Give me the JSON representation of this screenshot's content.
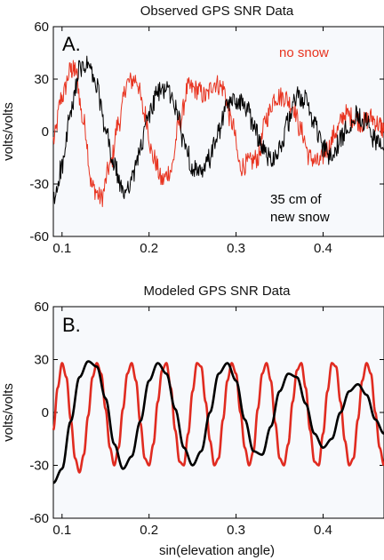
{
  "chart_data": [
    {
      "type": "line",
      "panel_label": "A.",
      "title": "Observed GPS SNR Data",
      "ylabel": "volts/volts",
      "xlabel": "",
      "xlim": [
        0.09,
        0.47
      ],
      "ylim": [
        -60,
        60
      ],
      "x_ticks": [
        "0.1",
        "0.2",
        "0.3",
        "0.4"
      ],
      "y_ticks": [
        "60",
        "30",
        "0",
        "-30",
        "-60"
      ],
      "annotations": [
        {
          "text": "no snow",
          "color": "#e8331f"
        },
        {
          "text": "35 cm of",
          "color": "#000000"
        },
        {
          "text": "new snow",
          "color": "#000000"
        }
      ],
      "series": [
        {
          "color": "#e8331f",
          "x": [
            0.09,
            0.1,
            0.11,
            0.115,
            0.125,
            0.135,
            0.145,
            0.155,
            0.165,
            0.175,
            0.185,
            0.195,
            0.205,
            0.215,
            0.225,
            0.235,
            0.245,
            0.255,
            0.265,
            0.275,
            0.285,
            0.295,
            0.305,
            0.315,
            0.325,
            0.335,
            0.345,
            0.355,
            0.365,
            0.375,
            0.385,
            0.395,
            0.405,
            0.415,
            0.425,
            0.435,
            0.445,
            0.455,
            0.465,
            0.47
          ],
          "y": [
            -5,
            20,
            35,
            35,
            5,
            -32,
            -38,
            -20,
            5,
            28,
            30,
            10,
            -15,
            -28,
            -22,
            5,
            25,
            24,
            20,
            28,
            25,
            5,
            -20,
            -18,
            -15,
            8,
            20,
            20,
            15,
            0,
            -15,
            -18,
            -10,
            0,
            10,
            8,
            5,
            8,
            4,
            0
          ]
        },
        {
          "color": "#000000",
          "x": [
            0.09,
            0.1,
            0.11,
            0.12,
            0.13,
            0.14,
            0.15,
            0.16,
            0.17,
            0.18,
            0.19,
            0.2,
            0.21,
            0.22,
            0.23,
            0.24,
            0.25,
            0.26,
            0.27,
            0.28,
            0.29,
            0.3,
            0.31,
            0.32,
            0.33,
            0.34,
            0.35,
            0.36,
            0.37,
            0.38,
            0.39,
            0.4,
            0.41,
            0.42,
            0.43,
            0.44,
            0.45,
            0.46,
            0.47
          ],
          "y": [
            -40,
            -20,
            10,
            35,
            38,
            25,
            0,
            -20,
            -35,
            -28,
            -10,
            10,
            22,
            25,
            15,
            -5,
            -20,
            -25,
            -15,
            0,
            15,
            18,
            15,
            5,
            -10,
            -15,
            -10,
            5,
            20,
            18,
            5,
            -10,
            -15,
            -5,
            5,
            10,
            5,
            -5,
            -10
          ]
        }
      ]
    },
    {
      "type": "line",
      "panel_label": "B.",
      "title": "Modeled GPS SNR Data",
      "ylabel": "volts/volts",
      "xlabel": "sin(elevation angle)",
      "xlim": [
        0.09,
        0.47
      ],
      "ylim": [
        -60,
        60
      ],
      "x_ticks": [
        "0.1",
        "0.2",
        "0.3",
        "0.4"
      ],
      "y_ticks": [
        "60",
        "30",
        "0",
        "-30",
        "-60"
      ],
      "series": [
        {
          "color": "#e02b20",
          "x": [
            0.09,
            0.095,
            0.1,
            0.105,
            0.11,
            0.115,
            0.12,
            0.125,
            0.13,
            0.135,
            0.14,
            0.145,
            0.15,
            0.155,
            0.16,
            0.165,
            0.17,
            0.175,
            0.18,
            0.185,
            0.19,
            0.195,
            0.2,
            0.205,
            0.21,
            0.215,
            0.22,
            0.225,
            0.23,
            0.235,
            0.24,
            0.245,
            0.25,
            0.255,
            0.26,
            0.265,
            0.27,
            0.275,
            0.28,
            0.285,
            0.29,
            0.295,
            0.3,
            0.305,
            0.31,
            0.315,
            0.32,
            0.325,
            0.33,
            0.335,
            0.34,
            0.345,
            0.35,
            0.355,
            0.36,
            0.365,
            0.37,
            0.375,
            0.38,
            0.385,
            0.39,
            0.395,
            0.4,
            0.405,
            0.41,
            0.415,
            0.42,
            0.425,
            0.43,
            0.435,
            0.44,
            0.445,
            0.45,
            0.455,
            0.46,
            0.465,
            0.47
          ],
          "y": [
            -10,
            14,
            28,
            20,
            -4,
            -26,
            -34,
            -24,
            -2,
            20,
            28,
            22,
            2,
            -20,
            -30,
            -20,
            2,
            22,
            28,
            18,
            -6,
            -26,
            -30,
            -18,
            6,
            24,
            28,
            14,
            -10,
            -28,
            -30,
            -12,
            12,
            28,
            26,
            6,
            -16,
            -30,
            -26,
            -4,
            18,
            28,
            22,
            0,
            -20,
            -30,
            -22,
            2,
            22,
            28,
            18,
            -6,
            -26,
            -30,
            -18,
            6,
            24,
            28,
            14,
            -10,
            -28,
            -30,
            -12,
            12,
            28,
            26,
            6,
            -16,
            -30,
            -26,
            -4,
            18,
            28,
            22,
            0,
            -20,
            -30
          ]
        },
        {
          "color": "#000000",
          "x": [
            0.09,
            0.1,
            0.11,
            0.12,
            0.13,
            0.14,
            0.15,
            0.16,
            0.17,
            0.18,
            0.19,
            0.2,
            0.21,
            0.22,
            0.23,
            0.24,
            0.25,
            0.26,
            0.27,
            0.28,
            0.29,
            0.3,
            0.31,
            0.32,
            0.33,
            0.34,
            0.35,
            0.36,
            0.37,
            0.38,
            0.39,
            0.4,
            0.41,
            0.42,
            0.43,
            0.44,
            0.45,
            0.46,
            0.47
          ],
          "y": [
            -40,
            -32,
            -5,
            20,
            29,
            26,
            8,
            -18,
            -32,
            -25,
            -5,
            18,
            28,
            22,
            2,
            -20,
            -30,
            -22,
            0,
            22,
            28,
            18,
            -4,
            -22,
            -24,
            -8,
            12,
            22,
            20,
            5,
            -12,
            -20,
            -15,
            0,
            12,
            16,
            10,
            -4,
            -12
          ]
        }
      ]
    }
  ]
}
